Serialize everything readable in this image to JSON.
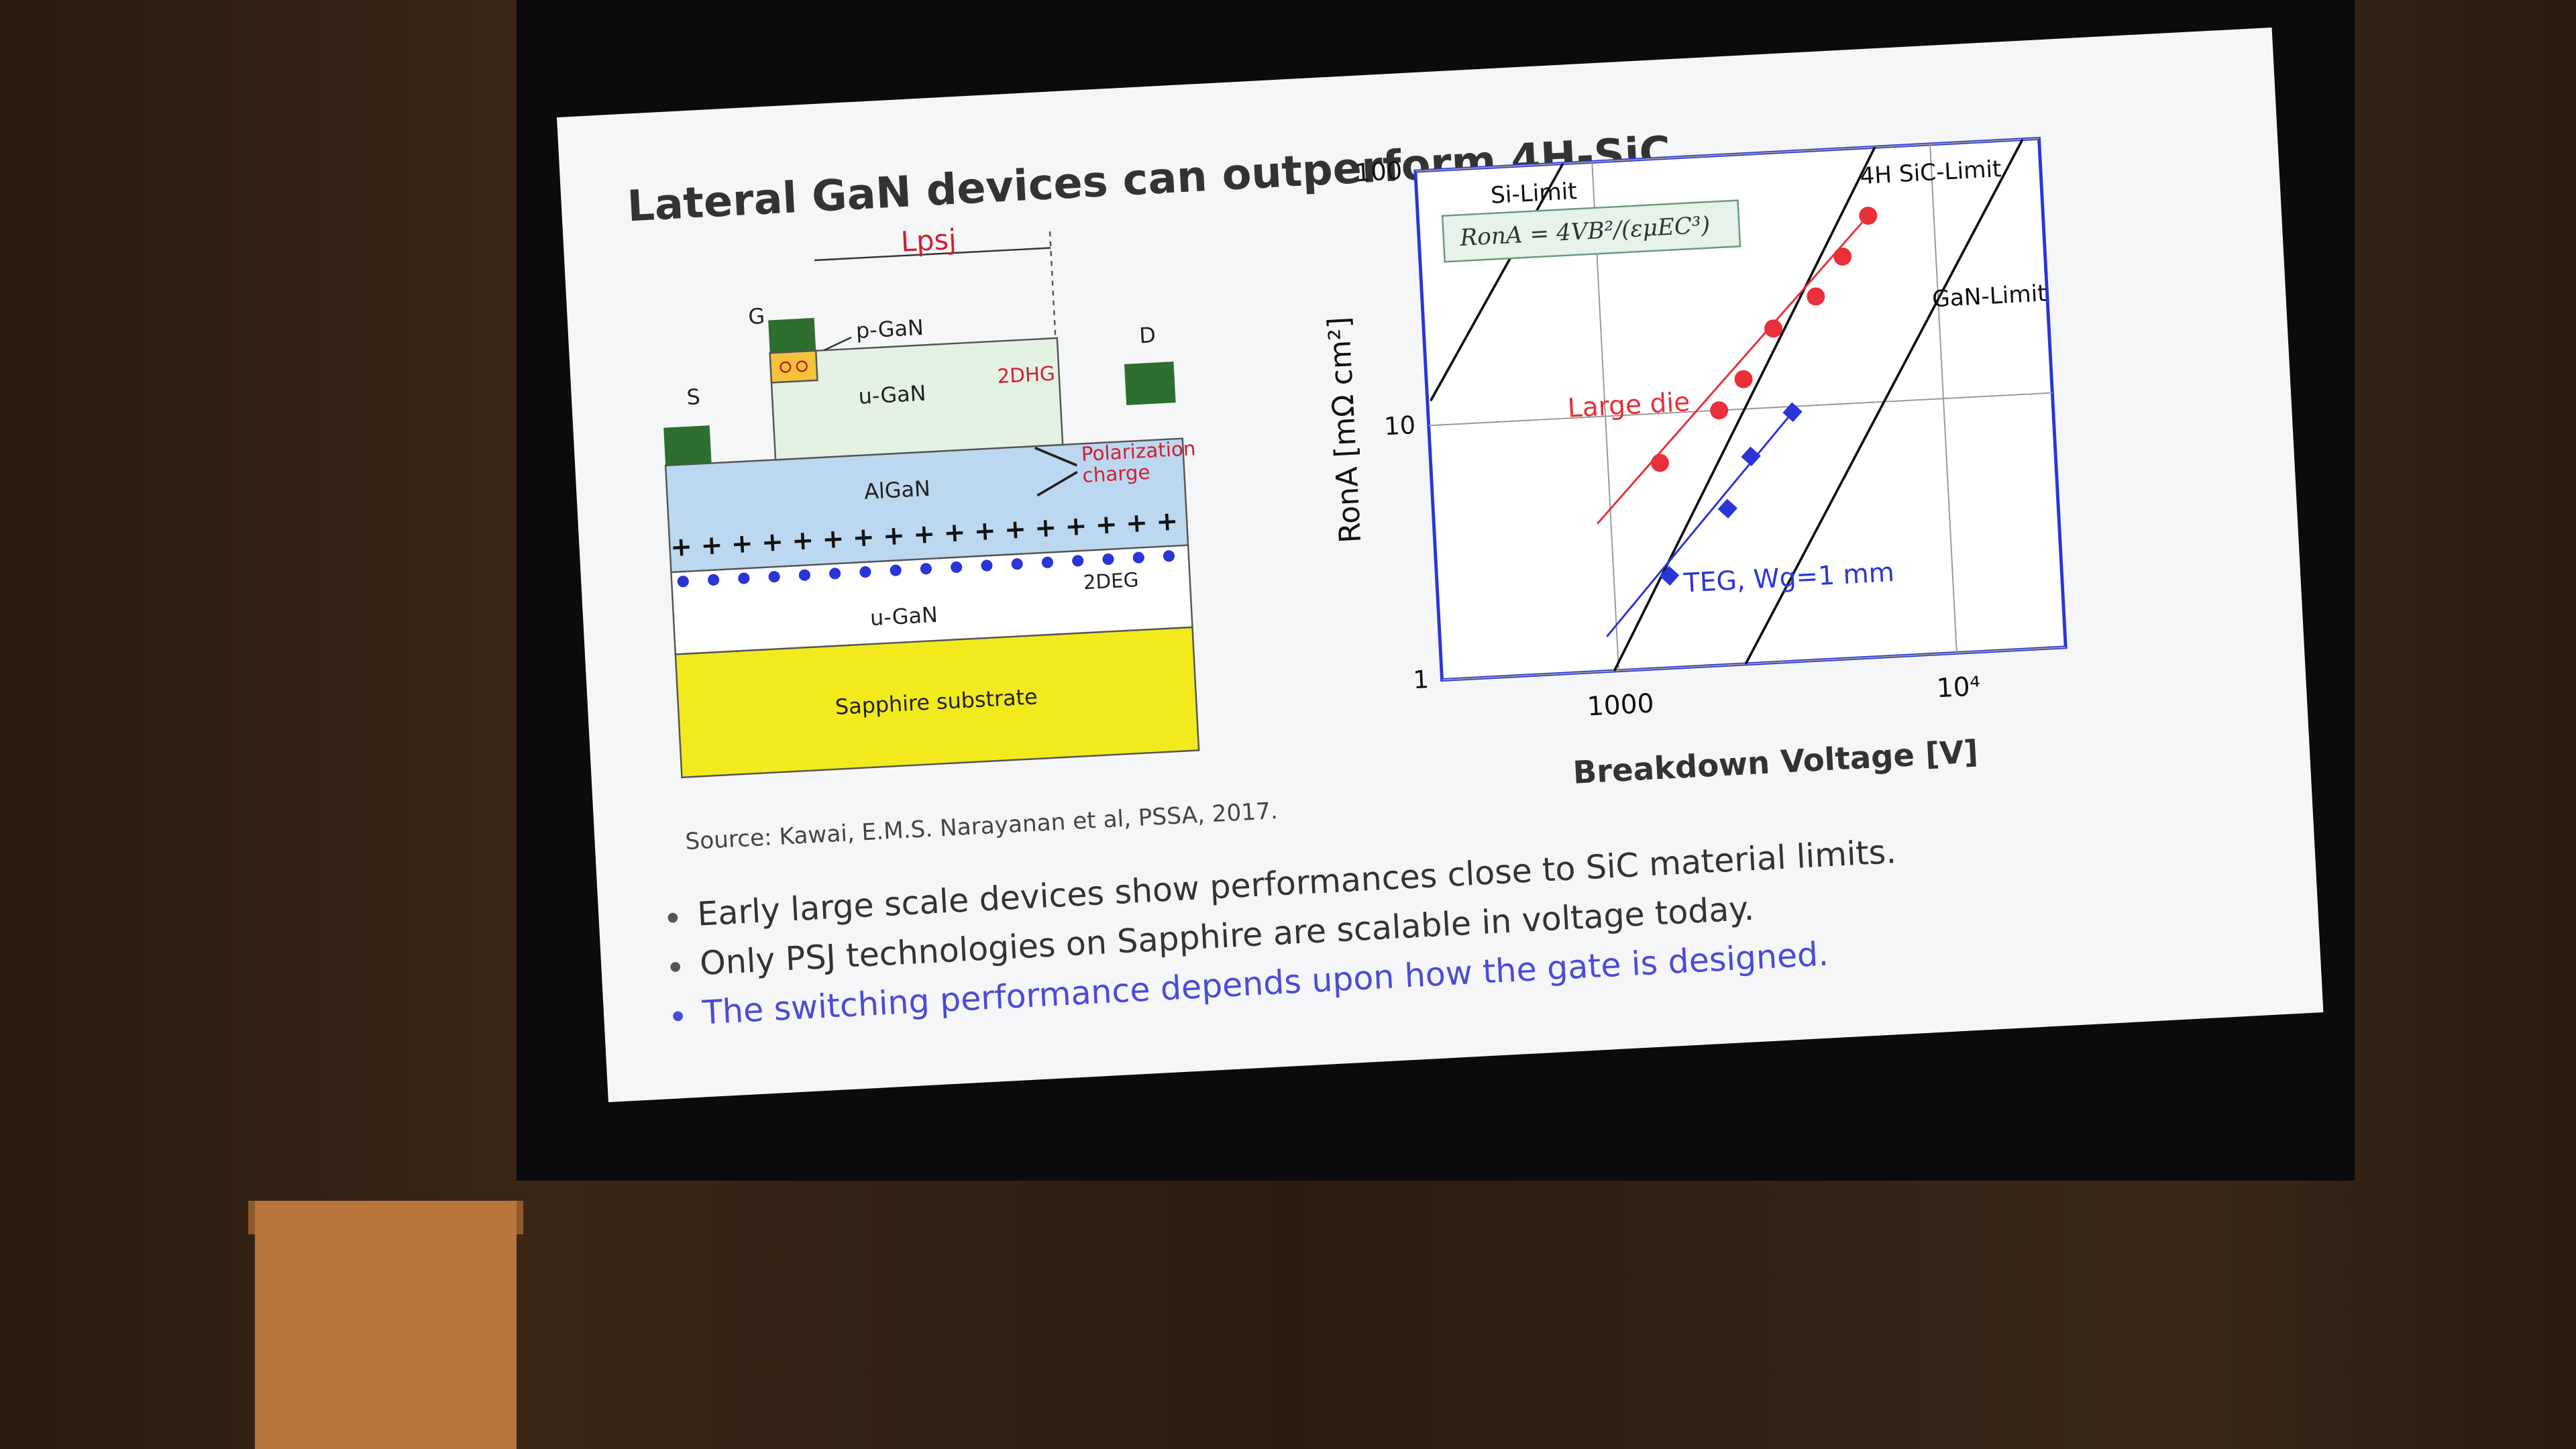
{
  "slide": {
    "title": "Lateral GaN devices can outperform 4H-SiC",
    "diagram": {
      "length_label": "Lpsj",
      "gate": "G",
      "source": "S",
      "drain": "D",
      "p_gan": "p-GaN",
      "top_layer": "u-GaN",
      "hole_gas": "2DHG",
      "polarization": [
        "Polarization",
        "charge"
      ],
      "barrier": "AlGaN",
      "electron_gas": "2DEG",
      "buffer": "u-GaN",
      "substrate": "Sapphire substrate"
    },
    "source_note": "Source: Kawai, E.M.S. Narayanan et al, PSSA, 2017.",
    "bullets": [
      "Early large scale devices show performances close to SiC material limits.",
      "Only PSJ technologies on Sapphire are scalable in voltage today.",
      "The switching performance depends upon how the gate is designed."
    ]
  },
  "chart_data": {
    "type": "scatter",
    "x_label": "Breakdown Voltage [V]",
    "y_label": "RonA [mΩ cm²]",
    "formula": "RonA = 4VB²/(εμEC³)",
    "limits": [
      "Si-Limit",
      "4H SiC-Limit",
      "GaN-Limit"
    ],
    "log_x": true,
    "log_y": true,
    "grid": true,
    "xlim": [
      300,
      21000
    ],
    "xticks": [
      1000,
      {
        "value": 10000,
        "label": "10⁴"
      }
    ],
    "ylim": [
      1,
      100
    ],
    "yticks": [
      1,
      10,
      100
    ],
    "series": [
      {
        "name": "Large die",
        "color": "#e8303a",
        "marker": "circle",
        "x": [
          1425,
          2170,
          2590,
          3230,
          4360,
          5300,
          6400
        ],
        "values": [
          6.4,
          10,
          13.1,
          20.4,
          26.7,
          37.8,
          54
        ]
      },
      {
        "name": "TEG, Wg=1 mm",
        "color": "#2a35d8",
        "marker": "diamond",
        "x": [
          1460,
          2220,
          2650,
          3570
        ],
        "values": [
          2.3,
          4.1,
          6.5,
          9.5
        ]
      }
    ]
  }
}
